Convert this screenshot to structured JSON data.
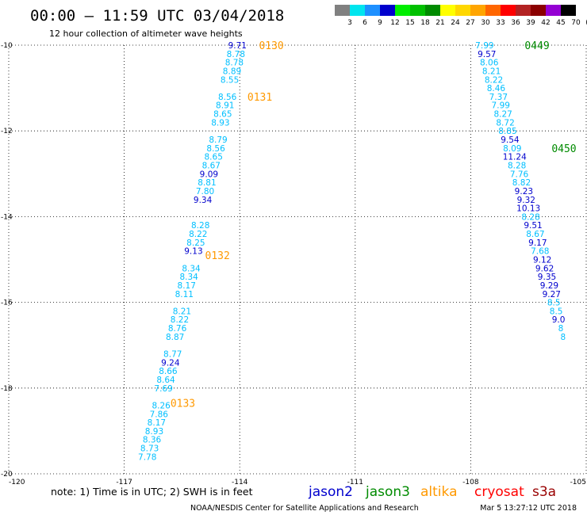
{
  "header": {
    "title": "00:00 – 11:59 UTC 03/04/2018",
    "subtitle": "12 hour collection of altimeter wave heights"
  },
  "color_scale": {
    "labels": [
      "3",
      "6",
      "9",
      "12",
      "15",
      "18",
      "21",
      "24",
      "27",
      "30",
      "33",
      "36",
      "39",
      "42",
      "45",
      "70",
      "(ft)"
    ],
    "colors": [
      "#808080",
      "#00e5ee",
      "#1e90ff",
      "#0000cd",
      "#00ee00",
      "#00c000",
      "#008b00",
      "#ffff00",
      "#ffd700",
      "#ffa500",
      "#ff6600",
      "#ff0000",
      "#b22222",
      "#8b0000",
      "#9400d3",
      "#000000"
    ]
  },
  "footer": {
    "note": "note: 1) Time is in UTC; 2) SWH is in feet",
    "credit": "NOAA/NESDIS Center for Satellite Applications and Research",
    "timestamp": "Mar  5 13:27:12 UTC 2018"
  },
  "legend": [
    {
      "name": "jason2",
      "color": "#0000cd"
    },
    {
      "name": "jason3",
      "color": "#008b00"
    },
    {
      "name": "altika",
      "color": "#ff9900"
    },
    {
      "name": "cryosat",
      "color": "#ff0000"
    },
    {
      "name": "s3a",
      "color": "#990000"
    }
  ],
  "chart_data": {
    "type": "scatter",
    "xlim": [
      -120,
      -105
    ],
    "ylim": [
      -20,
      -10
    ],
    "xticks": [
      "-120",
      "-117",
      "-114",
      "-111",
      "-108",
      "-105"
    ],
    "yticks": [
      "-10",
      "-12",
      "-14",
      "-16",
      "-18",
      "-20"
    ],
    "grid": true,
    "series": [
      {
        "name": "altika",
        "color": "#ff9900",
        "times": [
          {
            "label": "0130",
            "x": -113.5,
            "y": -10.0
          },
          {
            "label": "0131",
            "x": -113.8,
            "y": -11.2
          },
          {
            "label": "0132",
            "x": -114.9,
            "y": -14.9
          },
          {
            "label": "0133",
            "x": -115.8,
            "y": -18.35
          }
        ],
        "points": [
          {
            "x": -114.06,
            "y": -10.0,
            "v": "9.71",
            "c": "#0000cd"
          },
          {
            "x": -114.1,
            "y": -10.2,
            "v": "8.78",
            "c": "#00bfff"
          },
          {
            "x": -114.14,
            "y": -10.4,
            "v": "8.78",
            "c": "#00bfff"
          },
          {
            "x": -114.2,
            "y": -10.6,
            "v": "8.89",
            "c": "#00bfff"
          },
          {
            "x": -114.26,
            "y": -10.8,
            "v": "8.55",
            "c": "#00bfff"
          },
          {
            "x": -114.32,
            "y": -11.2,
            "v": "8.56",
            "c": "#00bfff"
          },
          {
            "x": -114.38,
            "y": -11.4,
            "v": "8.91",
            "c": "#00bfff"
          },
          {
            "x": -114.44,
            "y": -11.6,
            "v": "8.65",
            "c": "#00bfff"
          },
          {
            "x": -114.5,
            "y": -11.8,
            "v": "8.93",
            "c": "#00bfff"
          },
          {
            "x": -114.56,
            "y": -12.2,
            "v": "8.79",
            "c": "#00bfff"
          },
          {
            "x": -114.62,
            "y": -12.4,
            "v": "8.56",
            "c": "#00bfff"
          },
          {
            "x": -114.68,
            "y": -12.6,
            "v": "8.65",
            "c": "#00bfff"
          },
          {
            "x": -114.74,
            "y": -12.8,
            "v": "8.67",
            "c": "#00bfff"
          },
          {
            "x": -114.8,
            "y": -13.0,
            "v": "9.09",
            "c": "#0000cd"
          },
          {
            "x": -114.85,
            "y": -13.2,
            "v": "8.81",
            "c": "#00bfff"
          },
          {
            "x": -114.9,
            "y": -13.4,
            "v": "7.80",
            "c": "#00bfff"
          },
          {
            "x": -114.96,
            "y": -13.6,
            "v": "9.34",
            "c": "#0000cd"
          },
          {
            "x": -115.02,
            "y": -14.2,
            "v": "8.28",
            "c": "#00bfff"
          },
          {
            "x": -115.08,
            "y": -14.4,
            "v": "8.22",
            "c": "#00bfff"
          },
          {
            "x": -115.14,
            "y": -14.6,
            "v": "8.25",
            "c": "#00bfff"
          },
          {
            "x": -115.2,
            "y": -14.8,
            "v": "9.13",
            "c": "#0000cd"
          },
          {
            "x": -115.26,
            "y": -15.2,
            "v": "8.34",
            "c": "#00bfff"
          },
          {
            "x": -115.32,
            "y": -15.4,
            "v": "8.34",
            "c": "#00bfff"
          },
          {
            "x": -115.38,
            "y": -15.6,
            "v": "8.17",
            "c": "#00bfff"
          },
          {
            "x": -115.44,
            "y": -15.8,
            "v": "8.11",
            "c": "#00bfff"
          },
          {
            "x": -115.5,
            "y": -16.2,
            "v": "8.21",
            "c": "#00bfff"
          },
          {
            "x": -115.56,
            "y": -16.4,
            "v": "8.22",
            "c": "#00bfff"
          },
          {
            "x": -115.62,
            "y": -16.6,
            "v": "8.76",
            "c": "#00bfff"
          },
          {
            "x": -115.68,
            "y": -16.8,
            "v": "8.87",
            "c": "#00bfff"
          },
          {
            "x": -115.74,
            "y": -17.2,
            "v": "8.77",
            "c": "#00bfff"
          },
          {
            "x": -115.8,
            "y": -17.4,
            "v": "9.24",
            "c": "#0000cd"
          },
          {
            "x": -115.86,
            "y": -17.6,
            "v": "8.66",
            "c": "#00bfff"
          },
          {
            "x": -115.92,
            "y": -17.8,
            "v": "8.64",
            "c": "#00bfff"
          },
          {
            "x": -115.98,
            "y": -18.0,
            "v": "7.69",
            "c": "#00bfff"
          },
          {
            "x": -116.04,
            "y": -18.4,
            "v": "8.26",
            "c": "#00bfff"
          },
          {
            "x": -116.1,
            "y": -18.6,
            "v": "7.86",
            "c": "#00bfff"
          },
          {
            "x": -116.16,
            "y": -18.8,
            "v": "8.17",
            "c": "#00bfff"
          },
          {
            "x": -116.22,
            "y": -19.0,
            "v": "8.93",
            "c": "#00bfff"
          },
          {
            "x": -116.28,
            "y": -19.2,
            "v": "8.36",
            "c": "#00bfff"
          },
          {
            "x": -116.34,
            "y": -19.4,
            "v": "8.73",
            "c": "#00bfff"
          },
          {
            "x": -116.4,
            "y": -19.6,
            "v": "7.78",
            "c": "#00bfff"
          }
        ]
      },
      {
        "name": "jason3",
        "color": "#008b00",
        "times": [
          {
            "label": "0449",
            "x": -106.6,
            "y": -10.0
          },
          {
            "label": "0450",
            "x": -105.9,
            "y": -12.4
          }
        ],
        "points": [
          {
            "x": -107.64,
            "y": -10.0,
            "v": "7.99",
            "c": "#00bfff"
          },
          {
            "x": -107.58,
            "y": -10.2,
            "v": "9.57",
            "c": "#0000cd"
          },
          {
            "x": -107.52,
            "y": -10.4,
            "v": "8.06",
            "c": "#00bfff"
          },
          {
            "x": -107.46,
            "y": -10.6,
            "v": "8.21",
            "c": "#00bfff"
          },
          {
            "x": -107.4,
            "y": -10.8,
            "v": "8.22",
            "c": "#00bfff"
          },
          {
            "x": -107.34,
            "y": -11.0,
            "v": "8.46",
            "c": "#00bfff"
          },
          {
            "x": -107.28,
            "y": -11.2,
            "v": "7.37",
            "c": "#00bfff"
          },
          {
            "x": -107.22,
            "y": -11.4,
            "v": "7.99",
            "c": "#00bfff"
          },
          {
            "x": -107.16,
            "y": -11.6,
            "v": "8.27",
            "c": "#00bfff"
          },
          {
            "x": -107.1,
            "y": -11.8,
            "v": "8.72",
            "c": "#00bfff"
          },
          {
            "x": -107.04,
            "y": -12.0,
            "v": "8.85",
            "c": "#00bfff"
          },
          {
            "x": -106.98,
            "y": -12.2,
            "v": "9.54",
            "c": "#0000cd"
          },
          {
            "x": -106.92,
            "y": -12.4,
            "v": "8.09",
            "c": "#00bfff"
          },
          {
            "x": -106.86,
            "y": -12.6,
            "v": "11.24",
            "c": "#0000cd"
          },
          {
            "x": -106.8,
            "y": -12.8,
            "v": "8.28",
            "c": "#00bfff"
          },
          {
            "x": -106.74,
            "y": -13.0,
            "v": "7.76",
            "c": "#00bfff"
          },
          {
            "x": -106.68,
            "y": -13.2,
            "v": "8.82",
            "c": "#00bfff"
          },
          {
            "x": -106.62,
            "y": -13.4,
            "v": "9.23",
            "c": "#0000cd"
          },
          {
            "x": -106.56,
            "y": -13.6,
            "v": "9.32",
            "c": "#0000cd"
          },
          {
            "x": -106.5,
            "y": -13.8,
            "v": "10.13",
            "c": "#0000cd"
          },
          {
            "x": -106.44,
            "y": -14.0,
            "v": "8.28",
            "c": "#00bfff"
          },
          {
            "x": -106.38,
            "y": -14.2,
            "v": "9.51",
            "c": "#0000cd"
          },
          {
            "x": -106.32,
            "y": -14.4,
            "v": "8.67",
            "c": "#00bfff"
          },
          {
            "x": -106.26,
            "y": -14.6,
            "v": "9.17",
            "c": "#0000cd"
          },
          {
            "x": -106.2,
            "y": -14.8,
            "v": "7.68",
            "c": "#00bfff"
          },
          {
            "x": -106.14,
            "y": -15.0,
            "v": "9.12",
            "c": "#0000cd"
          },
          {
            "x": -106.08,
            "y": -15.2,
            "v": "9.62",
            "c": "#0000cd"
          },
          {
            "x": -106.02,
            "y": -15.4,
            "v": "9.35",
            "c": "#0000cd"
          },
          {
            "x": -105.96,
            "y": -15.6,
            "v": "9.29",
            "c": "#0000cd"
          },
          {
            "x": -105.9,
            "y": -15.8,
            "v": "9.27",
            "c": "#0000cd"
          },
          {
            "x": -105.84,
            "y": -16.0,
            "v": "8.5",
            "c": "#00bfff"
          },
          {
            "x": -105.78,
            "y": -16.2,
            "v": "8.5",
            "c": "#00bfff"
          },
          {
            "x": -105.72,
            "y": -16.4,
            "v": "9.0",
            "c": "#0000cd"
          },
          {
            "x": -105.66,
            "y": -16.6,
            "v": "8",
            "c": "#00bfff"
          },
          {
            "x": -105.6,
            "y": -16.8,
            "v": "8",
            "c": "#00bfff"
          }
        ]
      }
    ]
  }
}
